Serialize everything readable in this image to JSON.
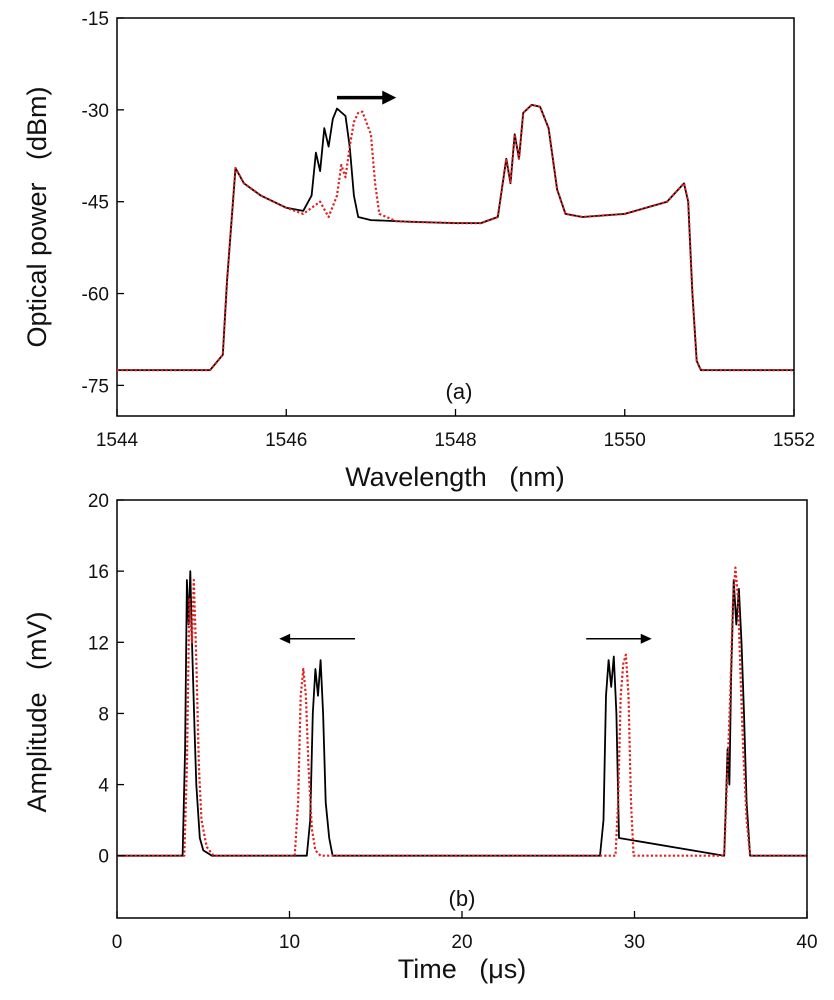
{
  "chart_data": [
    {
      "type": "line",
      "panel_label": "(a)",
      "xlabel": "Wavelength   (nm)",
      "ylabel": "Optical power   (dBm)",
      "xlim": [
        1544,
        1552
      ],
      "ylim": [
        -80,
        -15
      ],
      "xticks": [
        1544,
        1546,
        1548,
        1550,
        1552
      ],
      "xtick_labels": [
        "1544",
        "1546",
        "1548",
        "1550",
        "1552"
      ],
      "yticks": [
        -75,
        -60,
        -45,
        -30,
        -15
      ],
      "ytick_labels": [
        "-75",
        "-60",
        "-45",
        "-30",
        "-15"
      ],
      "annotations": [
        {
          "type": "arrow",
          "direction": "right",
          "from": [
            1546.6,
            -28
          ],
          "to": [
            1547.3,
            -28
          ]
        }
      ],
      "series": [
        {
          "name": "solid",
          "color": "#000000",
          "style": "solid",
          "x": [
            1544.0,
            1545.1,
            1545.25,
            1545.3,
            1545.4,
            1545.5,
            1545.7,
            1546.0,
            1546.2,
            1546.3,
            1546.35,
            1546.4,
            1546.45,
            1546.5,
            1546.55,
            1546.6,
            1546.7,
            1546.75,
            1546.8,
            1546.85,
            1547.0,
            1547.5,
            1548.0,
            1548.3,
            1548.5,
            1548.6,
            1548.65,
            1548.7,
            1548.75,
            1548.8,
            1548.9,
            1549.0,
            1549.1,
            1549.2,
            1549.3,
            1549.5,
            1550.0,
            1550.5,
            1550.6,
            1550.7,
            1550.75,
            1550.8,
            1550.85,
            1550.9,
            1551.0,
            1552.0
          ],
          "y": [
            -72.5,
            -72.5,
            -70,
            -58,
            -39.5,
            -42,
            -44,
            -46,
            -46.5,
            -44,
            -37,
            -40,
            -33,
            -36,
            -31.5,
            -29.8,
            -31,
            -36,
            -44,
            -47.5,
            -48,
            -48.3,
            -48.5,
            -48.5,
            -47.5,
            -38,
            -42,
            -34,
            -38,
            -30.5,
            -29.2,
            -29.5,
            -33,
            -43,
            -47,
            -47.5,
            -47,
            -45,
            -43.5,
            -42,
            -45,
            -60,
            -71,
            -72.5,
            -72.5,
            -72.5
          ]
        },
        {
          "name": "dotted",
          "color": "#e02020",
          "style": "dotted",
          "x": [
            1544.0,
            1545.1,
            1545.25,
            1545.3,
            1545.4,
            1545.5,
            1545.7,
            1546.0,
            1546.2,
            1546.4,
            1546.5,
            1546.6,
            1546.65,
            1546.7,
            1546.75,
            1546.8,
            1546.85,
            1546.9,
            1547.0,
            1547.05,
            1547.1,
            1547.3,
            1547.5,
            1548.0,
            1548.3,
            1548.5,
            1548.6,
            1548.65,
            1548.7,
            1548.75,
            1548.8,
            1548.9,
            1549.0,
            1549.1,
            1549.2,
            1549.3,
            1549.5,
            1550.0,
            1550.5,
            1550.6,
            1550.7,
            1550.75,
            1550.8,
            1550.85,
            1550.9,
            1551.0,
            1552.0
          ],
          "y": [
            -72.5,
            -72.5,
            -70,
            -58,
            -39.5,
            -42,
            -44,
            -46,
            -47,
            -45,
            -47.5,
            -44,
            -39,
            -41,
            -36,
            -32,
            -30.5,
            -30.3,
            -34,
            -42,
            -47,
            -48.2,
            -48.3,
            -48.5,
            -48.5,
            -47.5,
            -38,
            -42,
            -34,
            -38,
            -30.5,
            -29.2,
            -29.5,
            -33,
            -43,
            -47,
            -47.5,
            -47,
            -45,
            -43.5,
            -42,
            -45,
            -60,
            -71,
            -72.5,
            -72.5,
            -72.5
          ]
        }
      ]
    },
    {
      "type": "line",
      "panel_label": "(b)",
      "xlabel": "Time   (μs)",
      "ylabel": "Amplitude   (mV)",
      "xlim": [
        0,
        40
      ],
      "ylim": [
        -3.5,
        20
      ],
      "xticks": [
        0,
        10,
        20,
        30,
        40
      ],
      "xtick_labels": [
        "0",
        "10",
        "20",
        "30",
        "40"
      ],
      "yticks": [
        0,
        4,
        8,
        12,
        16,
        20
      ],
      "ytick_labels": [
        "0",
        "4",
        "8",
        "12",
        "16",
        "20"
      ],
      "annotations": [
        {
          "type": "arrow",
          "direction": "left",
          "from": [
            13.8,
            12.2
          ],
          "to": [
            9.4,
            12.2
          ]
        },
        {
          "type": "arrow",
          "direction": "right",
          "from": [
            27.2,
            12.2
          ],
          "to": [
            31.0,
            12.2
          ]
        }
      ],
      "series": [
        {
          "name": "solid",
          "color": "#000000",
          "style": "solid",
          "x": [
            0,
            3.8,
            3.95,
            4.05,
            4.15,
            4.25,
            4.35,
            4.5,
            4.6,
            4.8,
            5.0,
            5.5,
            11.0,
            11.2,
            11.35,
            11.5,
            11.65,
            11.8,
            11.95,
            12.1,
            12.3,
            12.5,
            28.0,
            28.2,
            28.35,
            28.5,
            28.65,
            28.8,
            28.95,
            29.1,
            35.2,
            35.4,
            35.5,
            35.6,
            35.75,
            35.9,
            36.05,
            36.2,
            36.35,
            36.5,
            36.7,
            40
          ],
          "y": [
            0,
            0,
            6,
            15.5,
            13,
            16,
            12,
            7,
            4,
            1,
            0.3,
            0,
            0,
            2,
            8,
            10.5,
            9,
            11,
            8,
            3,
            1,
            0,
            0,
            2,
            9,
            11,
            9.5,
            11.2,
            8,
            1,
            0,
            6,
            4,
            10,
            15.5,
            13,
            15,
            12,
            8,
            3,
            0,
            0
          ]
        },
        {
          "name": "dotted",
          "color": "#e02020",
          "style": "dotted",
          "x": [
            0,
            3.9,
            4.05,
            4.2,
            4.35,
            4.45,
            4.6,
            4.75,
            4.9,
            5.2,
            5.6,
            10.3,
            10.5,
            10.65,
            10.8,
            10.95,
            11.1,
            11.3,
            11.5,
            11.8,
            28.9,
            29.05,
            29.2,
            29.35,
            29.5,
            29.65,
            29.8,
            29.95,
            35.2,
            35.4,
            35.55,
            35.7,
            35.85,
            36.0,
            36.15,
            36.3,
            36.5,
            36.7,
            40
          ],
          "y": [
            0,
            0,
            5,
            14.5,
            12,
            15.5,
            11,
            5,
            2,
            0.5,
            0,
            0,
            3,
            9,
            10.5,
            9,
            5,
            1.5,
            0.3,
            0,
            0,
            3,
            9,
            10.8,
            11.3,
            9,
            3,
            0,
            0,
            5,
            9,
            14,
            16.2,
            14.5,
            10,
            6,
            2,
            0,
            0
          ]
        }
      ]
    }
  ]
}
